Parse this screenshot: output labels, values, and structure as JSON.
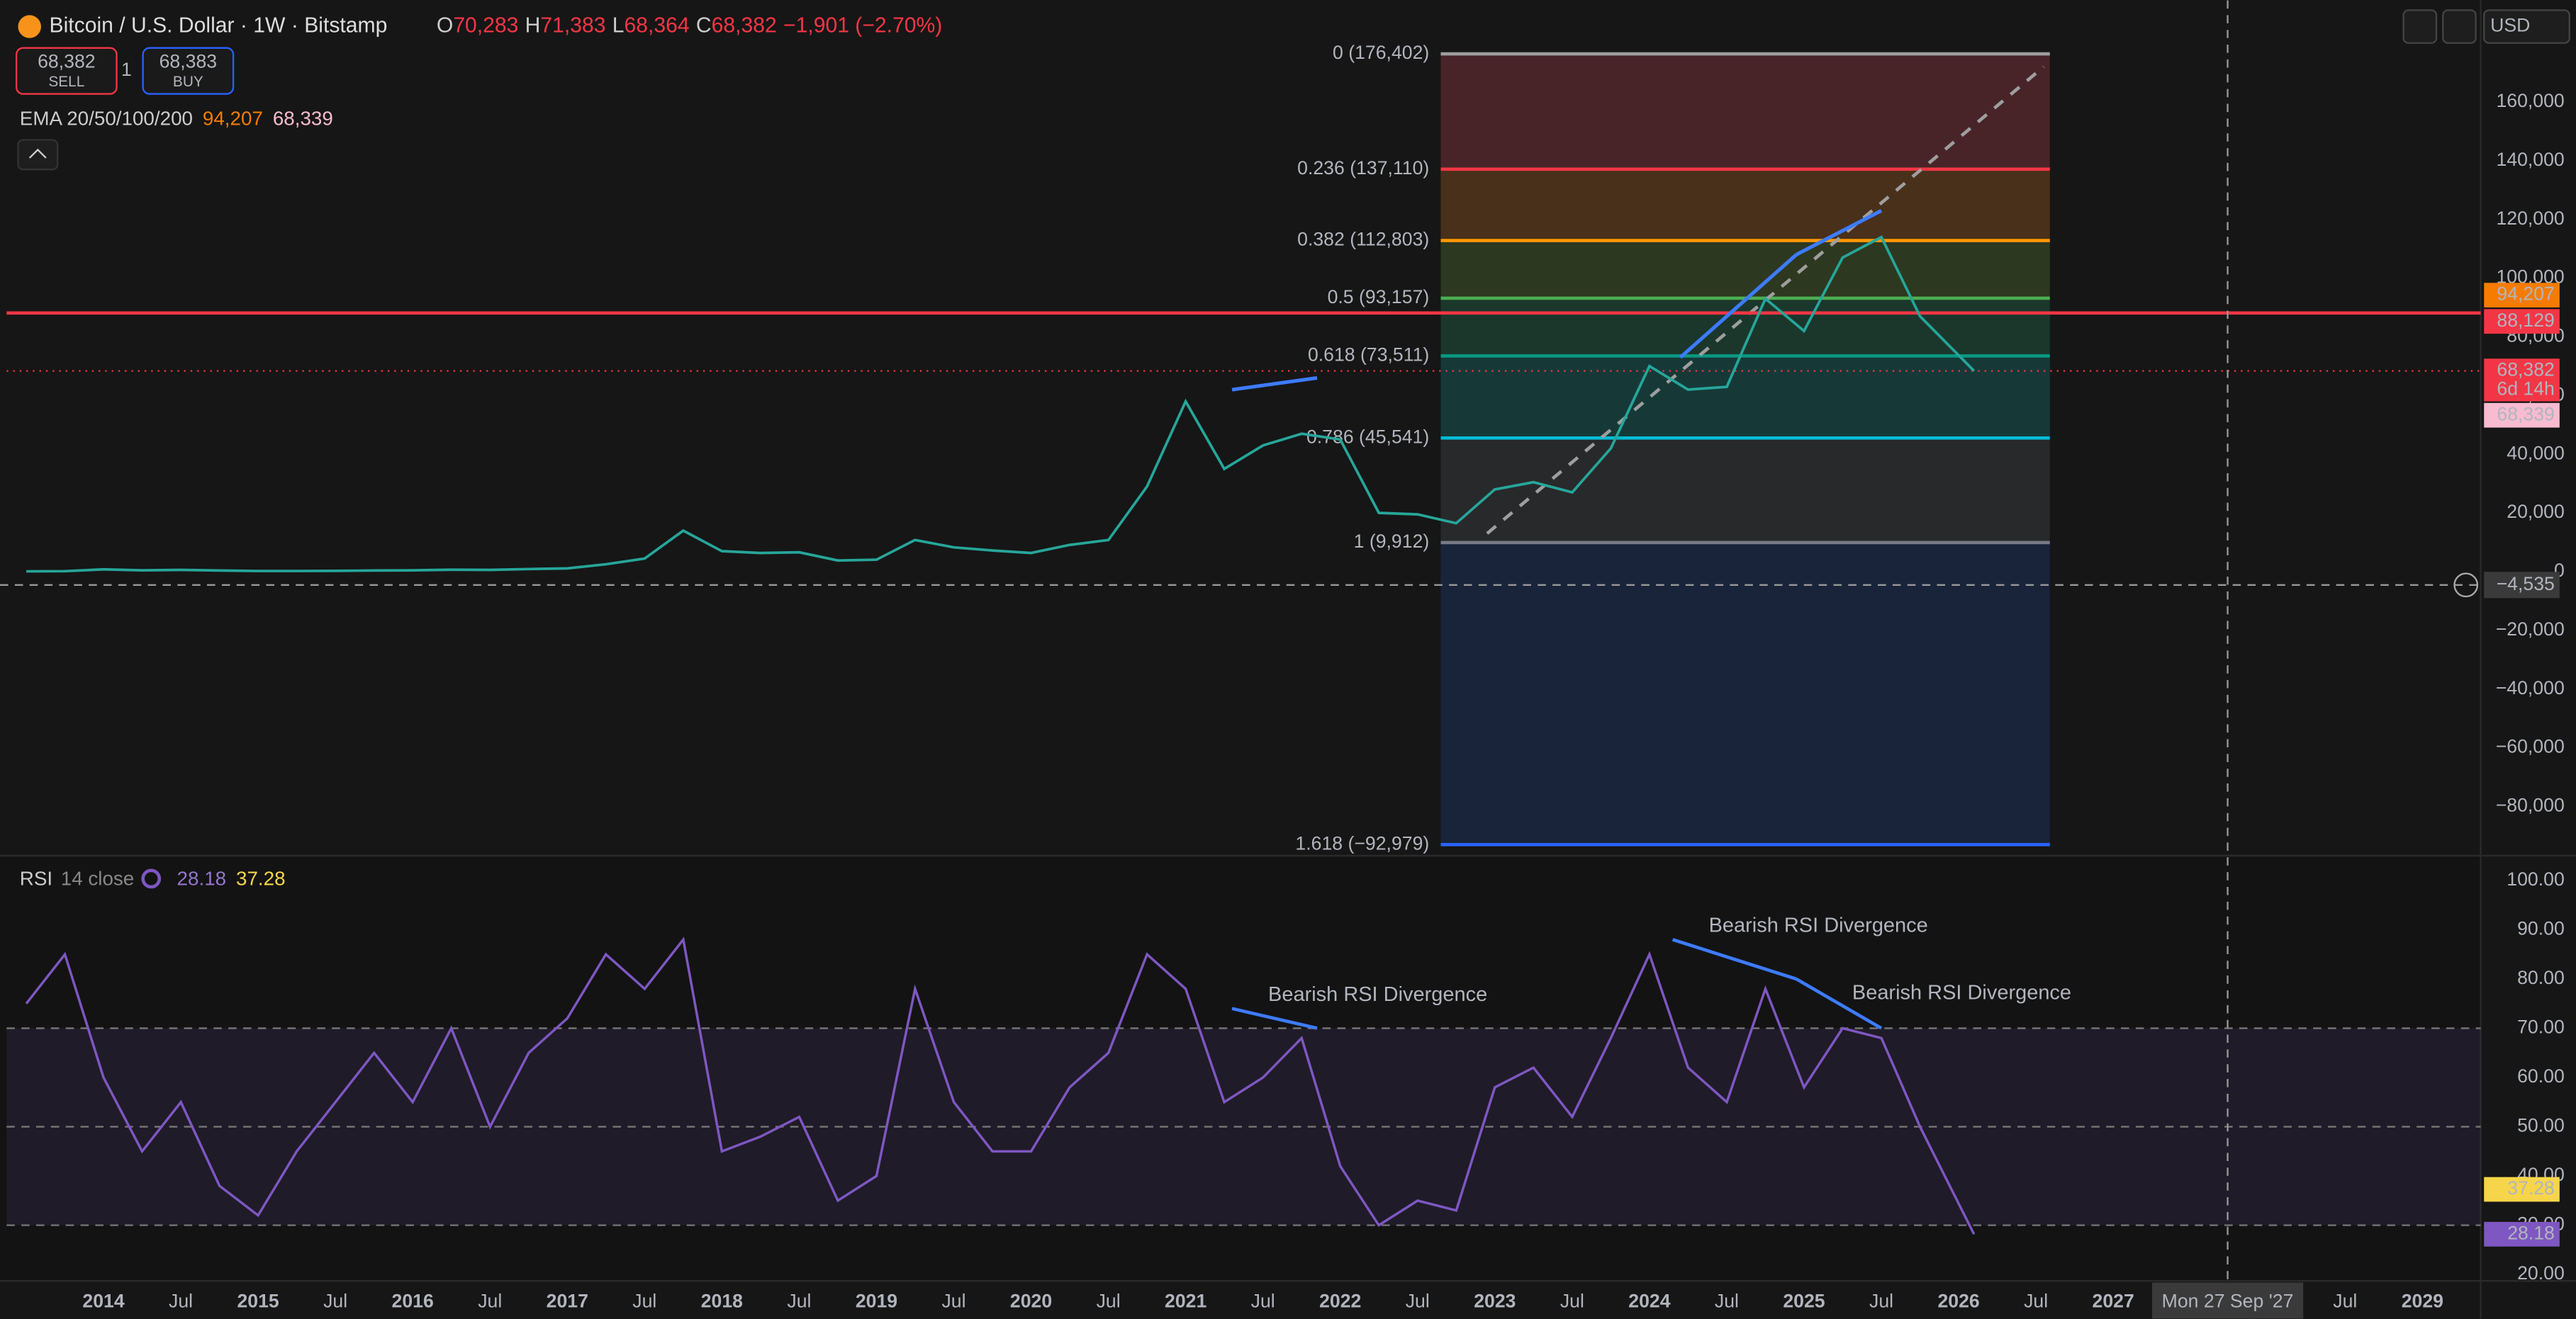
{
  "header": {
    "symbol": "Bitcoin / U.S. Dollar · 1W · Bitstamp",
    "ohlc": [
      {
        "key": "O",
        "value": "70,283"
      },
      {
        "key": "H",
        "value": "71,383"
      },
      {
        "key": "L",
        "value": "68,364"
      },
      {
        "key": "C",
        "value": "68,382"
      }
    ],
    "change": "−1,901 (−2.70%)",
    "sell_price": "68,382",
    "sell": "SELL",
    "quantity": "1",
    "buy_price": "68,383",
    "buy": "BUY",
    "ema_label": "EMA 20/50/100/200",
    "ema_values": [
      "94,207",
      "68,339"
    ],
    "currency": "USD"
  },
  "chart_data": {
    "type": "line",
    "x": [
      2013.5,
      2013.75,
      2014,
      2014.25,
      2014.5,
      2014.75,
      2015,
      2015.25,
      2015.5,
      2015.75,
      2016,
      2016.25,
      2016.5,
      2016.75,
      2017,
      2017.25,
      2017.5,
      2017.75,
      2018,
      2018.25,
      2018.5,
      2018.75,
      2019,
      2019.25,
      2019.5,
      2019.75,
      2020,
      2020.25,
      2020.5,
      2020.75,
      2021,
      2021.25,
      2021.5,
      2021.75,
      2022,
      2022.25,
      2022.5,
      2022.75,
      2023,
      2023.25,
      2023.5,
      2023.75,
      2024,
      2024.25,
      2024.5,
      2024.75,
      2025,
      2025.25,
      2025.5,
      2025.75,
      2026.1
    ],
    "series": [
      {
        "color": "#26a69a",
        "values": [
          100,
          150,
          800,
          450,
          600,
          380,
          250,
          230,
          280,
          400,
          420,
          650,
          600,
          900,
          1100,
          2500,
          4500,
          14000,
          7000,
          6400,
          6600,
          3800,
          4100,
          10800,
          8300,
          7200,
          6400,
          9100,
          10800,
          29000,
          58000,
          35000,
          43000,
          47000,
          45000,
          20000,
          19500,
          16500,
          28000,
          30500,
          27000,
          42000,
          70000,
          62000,
          63000,
          93000,
          82000,
          107000,
          114000,
          87000,
          68382
        ]
      }
    ],
    "xlim": [
      2013.373,
      2029.377
    ],
    "xticks": [
      2014,
      {
        "value": 2014.5,
        "label": "Jul"
      },
      2015,
      {
        "value": 2015.5,
        "label": "Jul"
      },
      2016,
      {
        "value": 2016.5,
        "label": "Jul"
      },
      2017,
      {
        "value": 2017.5,
        "label": "Jul"
      },
      2018,
      {
        "value": 2018.5,
        "label": "Jul"
      },
      2019,
      {
        "value": 2019.5,
        "label": "Jul"
      },
      2020,
      {
        "value": 2020.5,
        "label": "Jul"
      },
      2021,
      {
        "value": 2021.5,
        "label": "Jul"
      },
      2022,
      {
        "value": 2022.5,
        "label": "Jul"
      },
      2023,
      {
        "value": 2023.5,
        "label": "Jul"
      },
      2024,
      {
        "value": 2024.5,
        "label": "Jul"
      },
      2025,
      {
        "value": 2025.5,
        "label": "Jul"
      },
      2026,
      {
        "value": 2026.5,
        "label": "Jul"
      },
      2027,
      {
        "value": 2028.5,
        "label": "Jul"
      },
      2029
    ],
    "ylim": [
      -96200,
      192400
    ],
    "yticks": [
      {
        "value": 160000,
        "label": "160,000"
      },
      {
        "value": 140000,
        "label": "140,000"
      },
      {
        "value": 120000,
        "label": "120,000"
      },
      {
        "value": 100000,
        "label": "100,000"
      },
      {
        "value": 80000,
        "label": "80,000"
      },
      {
        "value": 60000,
        "label": "60,000"
      },
      {
        "value": 40000,
        "label": "40,000"
      },
      {
        "value": 20000,
        "label": "20,000"
      },
      0,
      {
        "value": -20000,
        "label": "−20,000"
      },
      {
        "value": -40000,
        "label": "−40,000"
      },
      {
        "value": -60000,
        "label": "−60,000"
      },
      {
        "value": -80000,
        "label": "−80,000"
      }
    ],
    "fib_x": [
      2022.65,
      2026.59
    ],
    "fib_levels": [
      {
        "label": "0 (176,402)",
        "price": 176402,
        "color": "#9e9e9e",
        "fill": "#5a2a30"
      },
      {
        "label": "0.236 (137,110)",
        "price": 137110,
        "color": "#f23645",
        "fill": "#5a3a1c"
      },
      {
        "label": "0.382 (112,803)",
        "price": 112803,
        "color": "#ff9800",
        "fill": "#354424"
      },
      {
        "label": "0.5 (93,157)",
        "price": 93157,
        "color": "#4caf50",
        "fill": "#1d4334"
      },
      {
        "label": "0.618 (73,511)",
        "price": 73511,
        "color": "#089981",
        "fill": "#174544"
      },
      {
        "label": "0.786 (45,541)",
        "price": 45541,
        "color": "#00bcd4",
        "fill": "#2f3031"
      },
      {
        "label": "1 (9,912)",
        "price": 9912,
        "color": "#787b86",
        "fill": "#1b2a48"
      },
      {
        "label": "1.618 (−92,979)",
        "price": -92979,
        "color": "#2962ff"
      }
    ],
    "fib_trend": [
      [
        2022.95,
        13000
      ],
      [
        2026.55,
        172000
      ]
    ],
    "hlines": [
      {
        "value": 88129,
        "color": "#f23645"
      }
    ],
    "divergences": [
      [
        [
          2021.3,
          62000
        ],
        [
          2021.85,
          66000
        ]
      ],
      [
        [
          2024.2,
          73000
        ],
        [
          2024.95,
          108000
        ]
      ],
      [
        [
          2024.95,
          108000
        ],
        [
          2025.5,
          123000
        ]
      ]
    ],
    "price_tags": [
      {
        "text": "94,207",
        "value": 94207,
        "color": "#f57c00",
        "ink": "#ffffff"
      },
      {
        "text": "88,129",
        "value": 88129,
        "color": "#f23645",
        "ink": "#ffffff"
      },
      {
        "text": "68,382",
        "sub": "6d 14h",
        "value": 68382,
        "color": "#f23645",
        "ink": "#ffffff",
        "dotted": true
      },
      {
        "text": "68,339",
        "value": 68339,
        "color": "#f8bbd0",
        "ink": "#222222"
      }
    ],
    "crosshair": {
      "x": 2027.74,
      "x_label": "Mon 27 Sep '27",
      "y": -4535,
      "y_label": "−4,535"
    }
  },
  "rsi": {
    "label": "RSI",
    "params": "14 close",
    "readouts": [
      "28.18",
      "37.28"
    ],
    "color": "#7e57c2",
    "signal_color": "#f7d54a",
    "values": [
      75,
      85,
      60,
      45,
      55,
      38,
      32,
      45,
      55,
      65,
      55,
      70,
      50,
      65,
      72,
      85,
      78,
      88,
      45,
      48,
      52,
      35,
      40,
      78,
      55,
      45,
      45,
      58,
      65,
      85,
      78,
      55,
      60,
      68,
      42,
      30,
      35,
      33,
      58,
      62,
      52,
      68,
      85,
      62,
      55,
      78,
      58,
      70,
      68,
      50,
      28.18
    ],
    "ylim": [
      18.7,
      104.7
    ],
    "yticks": [
      {
        "value": 100,
        "label": "100.00"
      },
      {
        "value": 90,
        "label": "90.00"
      },
      {
        "value": 80,
        "label": "80.00"
      },
      {
        "value": 70,
        "label": "70.00"
      },
      {
        "value": 60,
        "label": "60.00"
      },
      {
        "value": 50,
        "label": "50.00"
      },
      {
        "value": 40,
        "label": "40.00"
      },
      {
        "value": 30,
        "label": "30.00"
      },
      {
        "value": 20,
        "label": "20.00"
      }
    ],
    "bands": [
      30,
      50,
      70
    ],
    "tags": [
      {
        "text": "37.28",
        "value": 37.28,
        "color": "#f7d54a",
        "ink": "#222222"
      },
      {
        "text": "28.18",
        "value": 28.18,
        "color": "#7e57c2",
        "ink": "#ffffff"
      }
    ],
    "divergences": [
      {
        "points": [
          [
            2021.3,
            74
          ],
          [
            2021.85,
            70
          ]
        ],
        "label": "Bearish RSI Divergence"
      },
      {
        "points": [
          [
            2024.15,
            88
          ],
          [
            2024.95,
            80
          ]
        ],
        "label": "Bearish RSI Divergence"
      },
      {
        "points": [
          [
            2024.95,
            80
          ],
          [
            2025.5,
            70
          ]
        ],
        "label": "Bearish RSI Divergence"
      }
    ]
  }
}
